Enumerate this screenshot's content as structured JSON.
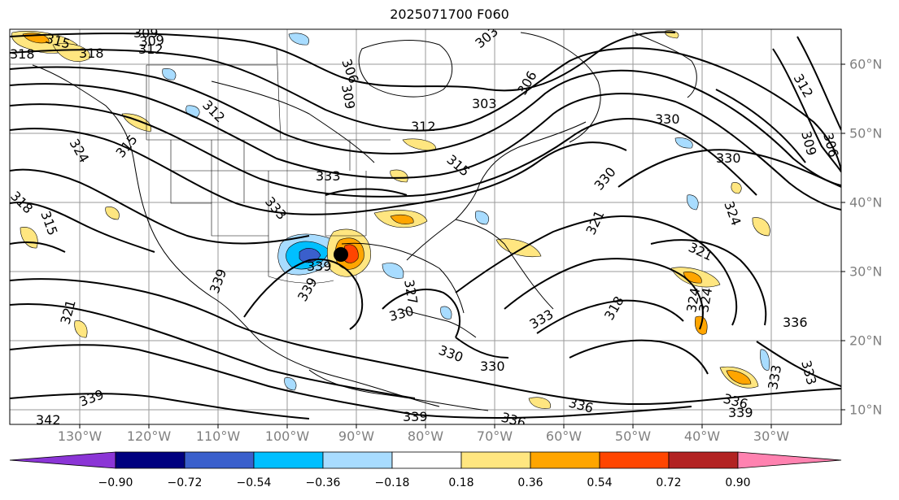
{
  "title": "2025071700 F060",
  "lon_labels": [
    "130°W",
    "120°W",
    "110°W",
    "100°W",
    "90°W",
    "80°W",
    "70°W",
    "60°W",
    "50°W",
    "40°W",
    "30°W"
  ],
  "lat_labels": [
    "60°N",
    "50°N",
    "40°N",
    "30°N",
    "20°N",
    "10°N"
  ],
  "contour_labels": [
    "309",
    "309",
    "312",
    "315",
    "318",
    "318",
    "303",
    "306",
    "309",
    "303",
    "306",
    "312",
    "315",
    "312",
    "309",
    "306",
    "324",
    "315",
    "312",
    "330",
    "333",
    "330",
    "324",
    "321",
    "330",
    "321",
    "318",
    "324",
    "336",
    "333",
    "333",
    "336",
    "336",
    "339",
    "336",
    "330",
    "333",
    "330",
    "330",
    "333",
    "339",
    "339",
    "342",
    "318",
    "315",
    "324",
    "321",
    "327",
    "339",
    "339",
    "339"
  ],
  "colorbar": {
    "tick_labels": [
      "−0.90",
      "−0.72",
      "−0.54",
      "−0.36",
      "−0.18",
      "0.18",
      "0.36",
      "0.54",
      "0.72",
      "0.90"
    ],
    "colors": [
      "#8b35d6",
      "#00007f",
      "#3a5fcc",
      "#00bfff",
      "#a8dcff",
      "#ffffff",
      "#ffe680",
      "#ffa500",
      "#ff4500",
      "#b22222",
      "#ff82b0"
    ]
  },
  "storm_marker": "black-dot"
}
